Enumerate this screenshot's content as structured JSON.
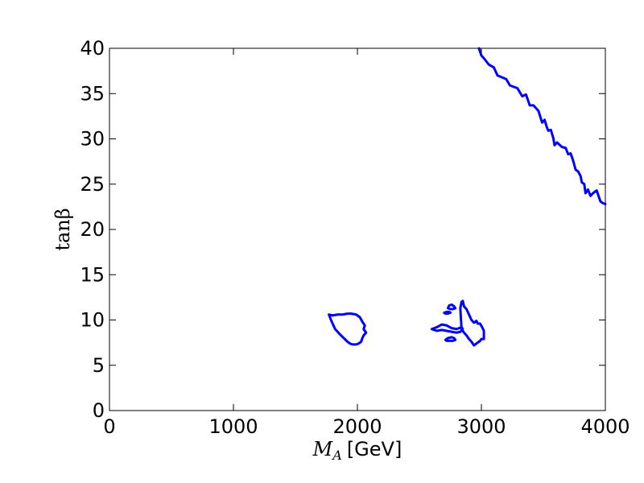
{
  "chart_data": {
    "type": "line",
    "title": "",
    "xlabel": {
      "symbol": "M",
      "subscript": "A",
      "unit": "[GeV]"
    },
    "ylabel": "tanβ",
    "xlim": [
      0,
      4000
    ],
    "ylim": [
      0,
      40
    ],
    "grid": false,
    "legend": "none",
    "x_ticks": [
      0,
      1000,
      2000,
      3000,
      4000
    ],
    "x_tick_labels": [
      "0",
      "1000",
      "2000",
      "3000",
      "4000"
    ],
    "y_ticks": [
      0,
      5,
      10,
      15,
      20,
      25,
      30,
      35,
      40
    ],
    "y_tick_labels": [
      "0",
      "5",
      "10",
      "15",
      "20",
      "25",
      "30",
      "35",
      "40"
    ],
    "line_color": "#0000ff",
    "series": [
      {
        "closed": false,
        "x": [
          2980,
          3000,
          3020,
          3060,
          3100,
          3130,
          3200,
          3230,
          3290,
          3330,
          3360,
          3390,
          3420,
          3460,
          3490,
          3510,
          3530,
          3540,
          3560,
          3580,
          3590,
          3610,
          3650,
          3680,
          3700,
          3720,
          3740,
          3760,
          3780,
          3800,
          3810,
          3830,
          3840,
          3860,
          3880,
          3900,
          3930,
          3960,
          3980,
          4000
        ],
        "y": [
          40.0,
          39.2,
          38.9,
          38.2,
          37.9,
          37.0,
          36.6,
          35.9,
          35.6,
          34.7,
          34.9,
          33.7,
          33.7,
          33.1,
          31.8,
          32.1,
          31.2,
          30.9,
          31.0,
          30.1,
          29.3,
          29.6,
          29.1,
          29.0,
          28.3,
          28.4,
          27.6,
          26.6,
          26.4,
          25.9,
          25.2,
          25.0,
          24.0,
          24.4,
          23.7,
          24.0,
          24.3,
          23.1,
          22.9,
          22.8
        ]
      },
      {
        "closed": true,
        "x": [
          1770,
          1800,
          1840,
          1880,
          1920,
          1950,
          1990,
          2020,
          2040,
          2060,
          2050,
          2070,
          2050,
          2040,
          2030,
          2010,
          1990,
          1960,
          1940,
          1920,
          1890,
          1860,
          1820,
          1790,
          1770
        ],
        "y": [
          10.6,
          10.5,
          10.6,
          10.6,
          10.7,
          10.7,
          10.6,
          10.3,
          9.8,
          9.4,
          9.0,
          8.6,
          8.3,
          8.0,
          7.6,
          7.4,
          7.3,
          7.3,
          7.4,
          7.6,
          8.0,
          8.4,
          9.0,
          9.9,
          10.6
        ]
      },
      {
        "closed": true,
        "x": [
          2600,
          2640,
          2680,
          2720,
          2760,
          2800,
          2840,
          2850,
          2830,
          2800,
          2760,
          2720,
          2680,
          2640,
          2600
        ],
        "y": [
          9.0,
          9.2,
          9.5,
          9.4,
          9.1,
          9.0,
          9.2,
          9.0,
          8.7,
          8.6,
          8.7,
          8.8,
          8.9,
          8.8,
          9.0
        ]
      },
      {
        "closed": true,
        "x": [
          2830,
          2840,
          2850,
          2860,
          2880,
          2900,
          2920,
          2940,
          2960,
          2970,
          2990,
          3010,
          3020,
          3020,
          3000,
          2990,
          2960,
          2940,
          2920,
          2900,
          2880,
          2860,
          2840,
          2830
        ],
        "y": [
          11.3,
          12.0,
          12.1,
          11.5,
          11.2,
          10.6,
          10.0,
          9.7,
          9.9,
          9.6,
          9.6,
          9.1,
          8.8,
          7.9,
          7.9,
          7.7,
          7.4,
          7.2,
          7.6,
          7.9,
          8.3,
          8.6,
          9.0,
          11.3
        ]
      },
      {
        "closed": true,
        "x": [
          2730,
          2740,
          2760,
          2780,
          2790,
          2770,
          2750,
          2730
        ],
        "y": [
          11.3,
          11.6,
          11.7,
          11.5,
          11.3,
          11.2,
          11.2,
          11.3
        ]
      },
      {
        "closed": true,
        "x": [
          2700,
          2720,
          2740,
          2750,
          2730,
          2710,
          2700
        ],
        "y": [
          10.8,
          10.9,
          10.9,
          10.8,
          10.7,
          10.7,
          10.8
        ]
      },
      {
        "closed": true,
        "x": [
          2710,
          2730,
          2760,
          2780,
          2790,
          2770,
          2740,
          2720,
          2710
        ],
        "y": [
          7.8,
          8.0,
          8.1,
          8.0,
          7.8,
          7.7,
          7.7,
          7.7,
          7.8
        ]
      }
    ]
  }
}
